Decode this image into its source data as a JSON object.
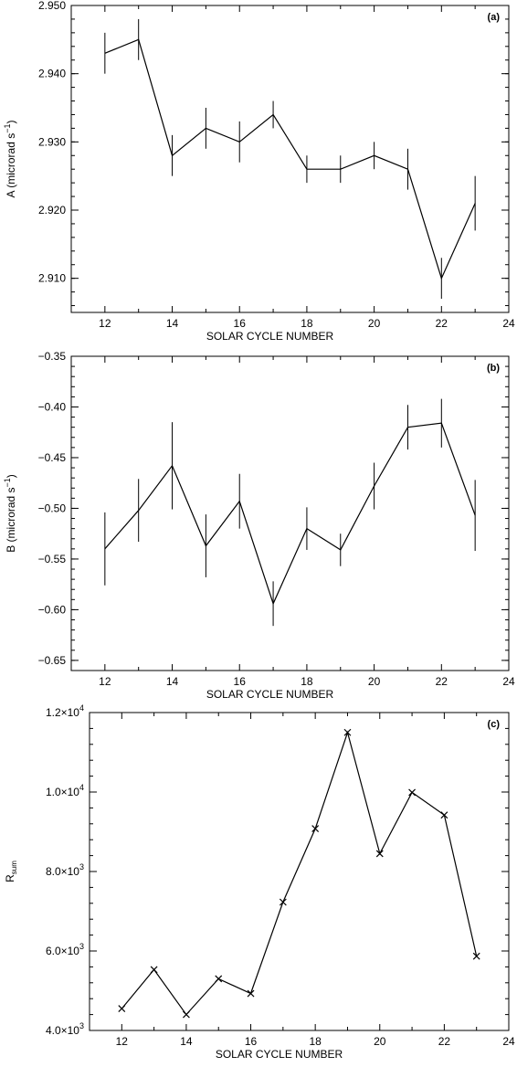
{
  "chart_data": [
    {
      "type": "line",
      "panel_tag": "(a)",
      "xlabel": "SOLAR CYCLE NUMBER",
      "ylabel": "A (microrad s",
      "ylabel_sup": "−1",
      "ylabel_close": ")",
      "xlim": [
        11,
        24
      ],
      "ylim": [
        2.905,
        2.95
      ],
      "xticks": [
        12,
        14,
        16,
        18,
        20,
        22,
        24
      ],
      "xtick_labels": [
        "12",
        "14",
        "16",
        "18",
        "20",
        "22",
        "24"
      ],
      "yticks": [
        2.91,
        2.92,
        2.93,
        2.94,
        2.95
      ],
      "ytick_labels": [
        "2.910",
        "2.920",
        "2.930",
        "2.940",
        "2.950"
      ],
      "grid": false,
      "series": [
        {
          "x": [
            12,
            13,
            14,
            15,
            16,
            17,
            18,
            19,
            20,
            21,
            22,
            23
          ],
          "y": [
            2.943,
            2.945,
            2.928,
            2.932,
            2.93,
            2.934,
            2.926,
            2.926,
            2.928,
            2.926,
            2.91,
            2.921
          ],
          "error": [
            0.003,
            0.003,
            0.003,
            0.003,
            0.003,
            0.002,
            0.002,
            0.002,
            0.002,
            0.003,
            0.003,
            0.004
          ],
          "marker": "none"
        }
      ]
    },
    {
      "type": "line",
      "panel_tag": "(b)",
      "xlabel": "SOLAR CYCLE NUMBER",
      "ylabel": "B (microrad s",
      "ylabel_sup": "−1",
      "ylabel_close": ")",
      "xlim": [
        11,
        24
      ],
      "ylim": [
        -0.66,
        -0.35
      ],
      "xticks": [
        12,
        14,
        16,
        18,
        20,
        22,
        24
      ],
      "xtick_labels": [
        "12",
        "14",
        "16",
        "18",
        "20",
        "22",
        "24"
      ],
      "yticks": [
        -0.65,
        -0.6,
        -0.55,
        -0.5,
        -0.45,
        -0.4,
        -0.35
      ],
      "ytick_labels": [
        "−0.65",
        "−0.60",
        "−0.55",
        "−0.50",
        "−0.45",
        "−0.40",
        "−0.35"
      ],
      "grid": false,
      "series": [
        {
          "x": [
            12,
            13,
            14,
            15,
            16,
            17,
            18,
            19,
            20,
            21,
            22,
            23
          ],
          "y": [
            -0.54,
            -0.502,
            -0.458,
            -0.537,
            -0.493,
            -0.594,
            -0.52,
            -0.541,
            -0.478,
            -0.42,
            -0.416,
            -0.507
          ],
          "error": [
            0.036,
            0.031,
            0.043,
            0.031,
            0.027,
            0.022,
            0.021,
            0.016,
            0.023,
            0.022,
            0.024,
            0.035
          ],
          "marker": "none"
        }
      ]
    },
    {
      "type": "line",
      "panel_tag": "(c)",
      "xlabel": "SOLAR CYCLE NUMBER",
      "ylabel": "R",
      "ylabel_sub": "sum",
      "xlim": [
        11,
        24
      ],
      "ylim": [
        4000,
        12000
      ],
      "xticks": [
        12,
        14,
        16,
        18,
        20,
        22,
        24
      ],
      "xtick_labels": [
        "12",
        "14",
        "16",
        "18",
        "20",
        "22",
        "24"
      ],
      "yticks": [
        4000,
        6000,
        8000,
        10000,
        12000
      ],
      "ytick_labels": [
        {
          "mant": "4.0×10",
          "exp": "3"
        },
        {
          "mant": "6.0×10",
          "exp": "3"
        },
        {
          "mant": "8.0×10",
          "exp": "3"
        },
        {
          "mant": "1.0×10",
          "exp": "4"
        },
        {
          "mant": "1.2×10",
          "exp": "4"
        }
      ],
      "grid": false,
      "series": [
        {
          "x": [
            12,
            13,
            14,
            15,
            16,
            17,
            18,
            19,
            20,
            21,
            22,
            23
          ],
          "y": [
            4550,
            5530,
            4400,
            5300,
            4930,
            7230,
            9080,
            11500,
            8450,
            9990,
            9420,
            5870
          ],
          "marker": "x"
        }
      ]
    }
  ]
}
